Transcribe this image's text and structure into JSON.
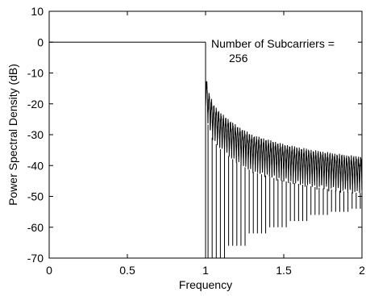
{
  "chart_data": {
    "type": "line",
    "title": "",
    "xlabel": "Frequency",
    "ylabel": "Power Spectral Density (dB)",
    "xlim": [
      0,
      2
    ],
    "ylim": [
      -70,
      10
    ],
    "xticks": [
      0,
      0.5,
      1,
      1.5,
      2
    ],
    "xtick_labels": [
      "0",
      "0.5",
      "1",
      "1.5",
      "2"
    ],
    "yticks": [
      10,
      0,
      -10,
      -20,
      -30,
      -40,
      -50,
      -60,
      -70
    ],
    "ytick_labels": [
      "10",
      "0",
      "-10",
      "-20",
      "-30",
      "-40",
      "-50",
      "-60",
      "-70"
    ],
    "grid": false,
    "series": [
      {
        "in_band": {
          "x": [
            0,
            1
          ],
          "y": [
            0,
            0
          ]
        },
        "out_of_band_envelope": {
          "x": [
            1.0,
            1.02,
            1.05,
            1.1,
            1.2,
            1.3,
            1.5,
            1.7,
            1.9,
            2.0
          ],
          "y": [
            -10,
            -16,
            -20,
            -23,
            -27,
            -30,
            -33,
            -35,
            -36.5,
            -37
          ]
        },
        "null_depth": [
          -70,
          -66,
          -62,
          -60,
          -58,
          -56,
          -55,
          -54
        ]
      }
    ],
    "annotation": [
      "Number of Subcarriers =",
      "256"
    ]
  }
}
